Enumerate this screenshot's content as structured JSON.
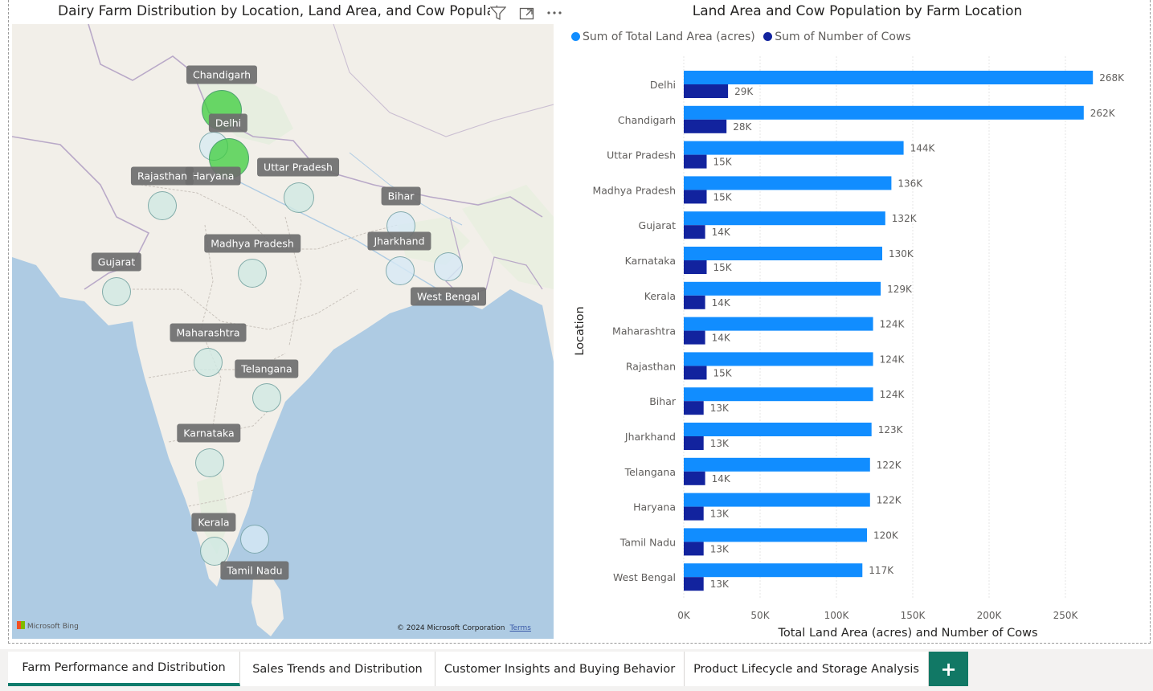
{
  "map": {
    "title": "Dairy Farm Distribution by Location, Land Area, and Cow Populat",
    "credit_left": "Microsoft Bing",
    "credit_right": "© 2024 Microsoft Corporation",
    "credit_terms": "Terms",
    "colors": {
      "land": "#f2efe9",
      "water": "#aecbe3",
      "bubble_large": "#3fc93f",
      "bubble_small": "#cfe8ee"
    },
    "locations": [
      {
        "name": "Chandigarh",
        "bubble": "large",
        "color": "#48cf48"
      },
      {
        "name": "Delhi",
        "bubble": "small",
        "color": "#d6ebf2"
      },
      {
        "name": "Haryana",
        "bubble": "large",
        "color": "#48cf48"
      },
      {
        "name": "Rajasthan",
        "bubble": "small",
        "color": "#cfe9e2"
      },
      {
        "name": "Uttar Pradesh",
        "bubble": "small",
        "color": "#cfe9e2"
      },
      {
        "name": "Bihar",
        "bubble": "small",
        "color": "#d6e8f5"
      },
      {
        "name": "Jharkhand",
        "bubble": "small",
        "color": "#d6e8f5"
      },
      {
        "name": "West Bengal",
        "bubble": "small",
        "color": "#d6e8f5"
      },
      {
        "name": "Madhya Pradesh",
        "bubble": "small",
        "color": "#cfe9e2"
      },
      {
        "name": "Gujarat",
        "bubble": "small",
        "color": "#cfe9e2"
      },
      {
        "name": "Maharashtra",
        "bubble": "small",
        "color": "#cfe9e2"
      },
      {
        "name": "Telangana",
        "bubble": "small",
        "color": "#cfe9e2"
      },
      {
        "name": "Karnataka",
        "bubble": "small",
        "color": "#cfe9e2"
      },
      {
        "name": "Kerala",
        "bubble": "small",
        "color": "#cfe9e2"
      },
      {
        "name": "Tamil Nadu",
        "bubble": "small",
        "color": "#d6e8f5"
      }
    ]
  },
  "chart_data": {
    "type": "bar",
    "orientation": "horizontal",
    "title": "Land Area and Cow Population by Farm Location",
    "xlabel": "Total Land Area (acres) and Number of Cows",
    "ylabel": "Location",
    "xlim": [
      0,
      275000
    ],
    "xticks": [
      0,
      50000,
      100000,
      150000,
      200000,
      250000
    ],
    "xtick_labels": [
      "0K",
      "50K",
      "100K",
      "150K",
      "200K",
      "250K"
    ],
    "grid": true,
    "legend_position": "top-left",
    "categories": [
      "Delhi",
      "Chandigarh",
      "Uttar Pradesh",
      "Madhya Pradesh",
      "Gujarat",
      "Karnataka",
      "Kerala",
      "Maharashtra",
      "Rajasthan",
      "Bihar",
      "Jharkhand",
      "Telangana",
      "Haryana",
      "Tamil Nadu",
      "West Bengal"
    ],
    "series": [
      {
        "name": "Sum of Total Land Area (acres)",
        "color": "#118dff",
        "values": [
          268000,
          262000,
          144000,
          136000,
          132000,
          130000,
          129000,
          124000,
          124000,
          124000,
          123000,
          122000,
          122000,
          120000,
          117000
        ],
        "labels": [
          "268K",
          "262K",
          "144K",
          "136K",
          "132K",
          "130K",
          "129K",
          "124K",
          "124K",
          "124K",
          "123K",
          "122K",
          "122K",
          "120K",
          "117K"
        ]
      },
      {
        "name": "Sum of Number of Cows",
        "color": "#12239e",
        "values": [
          29000,
          28000,
          15000,
          15000,
          14000,
          15000,
          14000,
          14000,
          15000,
          13000,
          13000,
          14000,
          13000,
          13000,
          13000
        ],
        "labels": [
          "29K",
          "28K",
          "15K",
          "15K",
          "14K",
          "15K",
          "14K",
          "14K",
          "15K",
          "13K",
          "13K",
          "14K",
          "13K",
          "13K",
          "13K"
        ]
      }
    ]
  },
  "tabs": [
    {
      "label": "Farm Performance and Distribution",
      "active": true
    },
    {
      "label": "Sales Trends and Distribution",
      "active": false
    },
    {
      "label": "Customer Insights and Buying Behavior",
      "active": false
    },
    {
      "label": "Product Lifecycle and Storage Analysis",
      "active": false
    }
  ],
  "add_tab_label": "+"
}
